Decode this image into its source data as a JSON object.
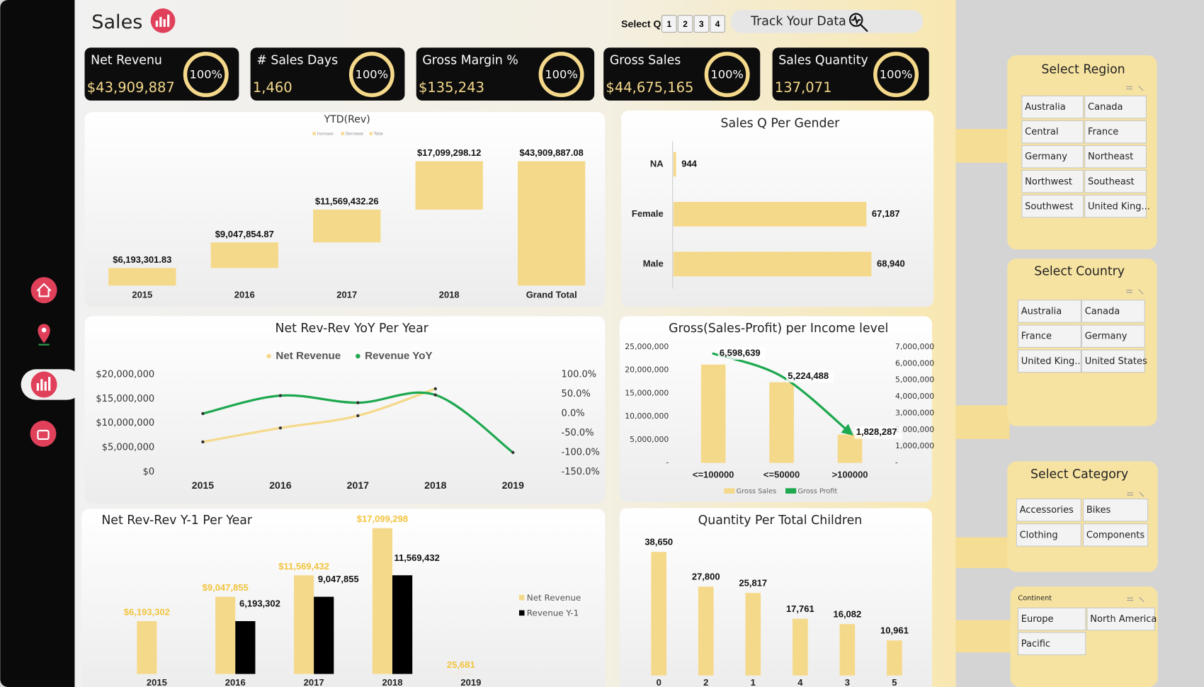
{
  "header": {
    "title": "Sales",
    "select_q": "Select Q",
    "quarters": [
      "1",
      "2",
      "3",
      "4"
    ],
    "track": "Track Your Data"
  },
  "kpis": [
    {
      "label": "Net Revenu",
      "value": "$43,909,887",
      "percent": "100%"
    },
    {
      "label": "# Sales Days",
      "value": "1,460",
      "percent": "100%"
    },
    {
      "label": "Gross Margin %",
      "value": "$135,243",
      "percent": "100%"
    },
    {
      "label": "Gross Sales",
      "value": "$44,675,165",
      "percent": "100%"
    },
    {
      "label": "Sales Quantity",
      "value": "137,071",
      "percent": "100%"
    }
  ],
  "chart_data": [
    {
      "type": "waterfall",
      "title": "YTD(Rev)",
      "legend": [
        "Increase",
        "Decrease",
        "Total"
      ],
      "color": "#f5d98b",
      "categories": [
        "2015",
        "2016",
        "2017",
        "2018",
        "Grand Total"
      ],
      "values": [
        6193301.83,
        9047854.87,
        11569432.26,
        17099298.12,
        43909887.08
      ],
      "value_labels": [
        "$6,193,301.83",
        "$9,047,854.87",
        "$11,569,432.26",
        "$17,099,298.12",
        "$43,909,887.08"
      ]
    },
    {
      "type": "hbar",
      "title": "Sales Q Per Gender",
      "color": "#f5d98b",
      "categories": [
        "NA",
        "Female",
        "Male"
      ],
      "values": [
        944,
        67187,
        68940
      ],
      "value_labels": [
        "944",
        "67,187",
        "68,940"
      ]
    },
    {
      "type": "line",
      "title": "Net Rev-Rev YoY Per Year",
      "categories": [
        "2015",
        "2016",
        "2017",
        "2018",
        "2019"
      ],
      "series": [
        {
          "name": "Net Revenue",
          "color": "#f5d98b",
          "values": [
            6193302,
            9047855,
            11569432,
            17099298,
            null
          ]
        },
        {
          "name": "Revenue YoY",
          "color": "#1ea84f",
          "axis": "y2",
          "values": [
            0,
            46.1,
            27.9,
            47.8,
            -99.8
          ]
        }
      ],
      "ylim": [
        0,
        20000000
      ],
      "yticks": [
        {
          "value": 0,
          "label": "$0"
        },
        {
          "value": 5000000,
          "label": "$5,000,000"
        },
        {
          "value": 10000000,
          "label": "$10,000,000"
        },
        {
          "value": 15000000,
          "label": "$15,000,000"
        },
        {
          "value": 20000000,
          "label": "$20,000,000"
        }
      ],
      "y2lim": [
        -150,
        100
      ],
      "y2ticks": [
        {
          "value": 100,
          "label": "100.0%"
        },
        {
          "value": 50,
          "label": "50.0%"
        },
        {
          "value": 0,
          "label": "0.0%"
        },
        {
          "value": -50,
          "label": "-50.0%"
        },
        {
          "value": -100,
          "label": "-100.0%"
        },
        {
          "value": -150,
          "label": "-150.0%"
        }
      ]
    },
    {
      "type": "combo",
      "title": "Gross(Sales-Profit) per Income level",
      "categories": [
        "<=100000",
        "<=50000",
        ">100000"
      ],
      "series": [
        {
          "name": "Gross Sales",
          "color": "#f5d98b",
          "values": [
            21200000,
            17400000,
            6100000
          ]
        },
        {
          "name": "Gross Profit",
          "color": "#1ea84f",
          "axis": "y2",
          "values": [
            6598639,
            5224488,
            1828287
          ],
          "value_labels": [
            "6,598,639",
            "5,224,488",
            "1,828,287"
          ]
        }
      ],
      "ylim": [
        0,
        25000000
      ],
      "yticks": [
        {
          "value": 0,
          "label": "-"
        },
        {
          "value": 5000000,
          "label": "5,000,000"
        },
        {
          "value": 10000000,
          "label": "10,000,000"
        },
        {
          "value": 15000000,
          "label": "15,000,000"
        },
        {
          "value": 20000000,
          "label": "20,000,000"
        },
        {
          "value": 25000000,
          "label": "25,000,000"
        }
      ],
      "y2lim": [
        0,
        7000000
      ],
      "y2ticks": [
        {
          "value": 0,
          "label": "-"
        },
        {
          "value": 1000000,
          "label": "1,000,000"
        },
        {
          "value": 2000000,
          "label": "2,000,000"
        },
        {
          "value": 3000000,
          "label": "3,000,000"
        },
        {
          "value": 4000000,
          "label": "4,000,000"
        },
        {
          "value": 5000000,
          "label": "5,000,000"
        },
        {
          "value": 6000000,
          "label": "6,000,000"
        },
        {
          "value": 7000000,
          "label": "7,000,000"
        }
      ]
    },
    {
      "type": "grouped-bar",
      "title": "Net Rev-Rev Y-1 Per Year",
      "categories": [
        "2015",
        "2016",
        "2017",
        "2018",
        "2019"
      ],
      "series": [
        {
          "name": "Net Revenue",
          "color": "#f5d98b",
          "values": [
            6193302,
            9047855,
            11569432,
            17099298,
            25681
          ],
          "value_labels": [
            "$6,193,302",
            "$9,047,855",
            "$11,569,432",
            "$17,099,298",
            "25,681"
          ]
        },
        {
          "name": "Revenue Y-1",
          "color": "#000000",
          "values": [
            null,
            6193302,
            9047855,
            11569432,
            null
          ],
          "value_labels": [
            null,
            "6,193,302",
            "9,047,855",
            "11,569,432",
            null
          ]
        }
      ]
    },
    {
      "type": "bar",
      "title": "Quantity Per Total Children",
      "color": "#f5d98b",
      "categories": [
        "0",
        "2",
        "1",
        "4",
        "3",
        "5"
      ],
      "values": [
        38650,
        27800,
        25817,
        17761,
        16082,
        10961
      ],
      "value_labels": [
        "38,650",
        "27,800",
        "25,817",
        "17,761",
        "16,082",
        "10,961"
      ]
    }
  ],
  "slicers": [
    {
      "title": "Select Region",
      "items": [
        "Australia",
        "Canada",
        "Central",
        "France",
        "Germany",
        "Northeast",
        "Northwest",
        "Southeast",
        "Southwest",
        "United King..."
      ]
    },
    {
      "title": "Select Country",
      "items": [
        "Australia",
        "Canada",
        "France",
        "Germany",
        "United King...",
        "United States"
      ]
    },
    {
      "title": "Select Category",
      "items": [
        "Accessories",
        "Bikes",
        "Clothing",
        "Components"
      ]
    },
    {
      "title": "Continent",
      "items": [
        "Europe",
        "North America",
        "Pacific"
      ]
    }
  ]
}
